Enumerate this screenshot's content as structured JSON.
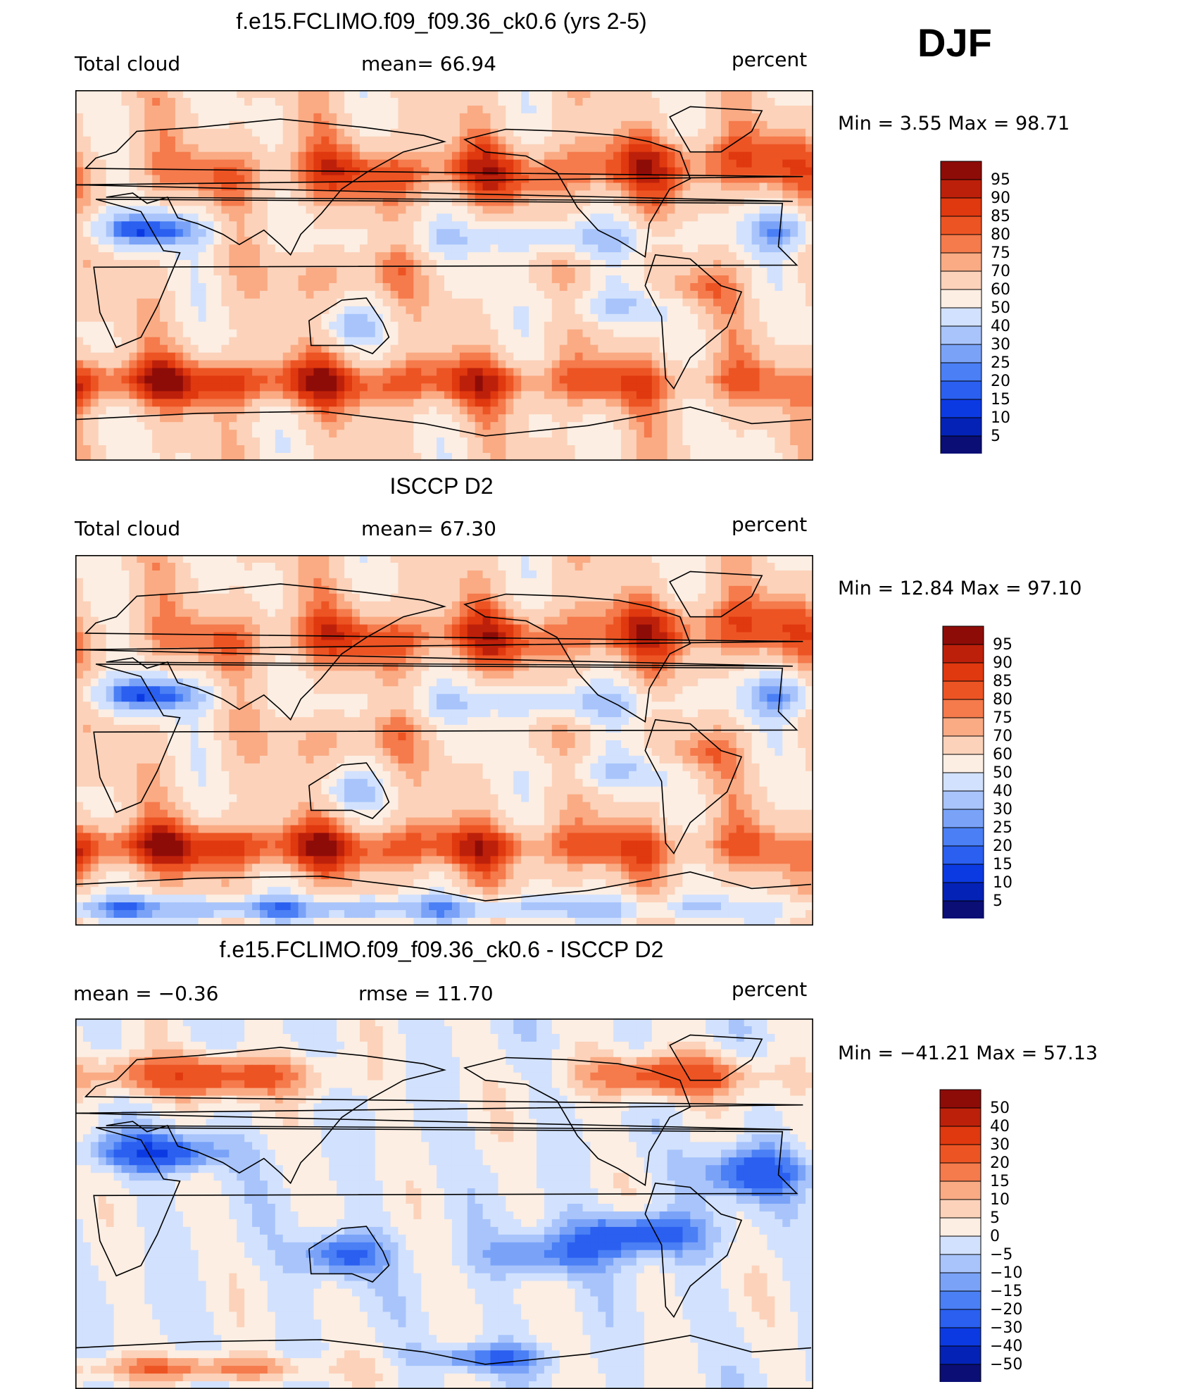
{
  "season": "DJF",
  "colors": {
    "scale13": [
      "#0a0e75",
      "#0422b6",
      "#0c3ae2",
      "#2a5ff0",
      "#4a7ff5",
      "#7aa3f8",
      "#a8c4fb",
      "#d2e1fd",
      "#fceee3",
      "#fcd2ba",
      "#faab84",
      "#f57a4c",
      "#ed5423",
      "#e0380f",
      "#bd200a",
      "#8e0c08"
    ],
    "diff16": [
      "#0a0e75",
      "#0422b6",
      "#0c3ae2",
      "#2a5ff0",
      "#4a7ff5",
      "#7aa3f8",
      "#a8c4fb",
      "#d2e1fd",
      "#fceee3",
      "#fcd2ba",
      "#faab84",
      "#f57a4c",
      "#ed5423",
      "#e0380f",
      "#bd200a",
      "#8e0c08"
    ]
  },
  "chart_data": [
    {
      "type": "heatmap",
      "title": "f.e15.FCLIMO.f09_f09.36_ck0.6 (yrs 2-5)",
      "left_label": "Total cloud",
      "center_label": "mean=   66.94",
      "units": "percent",
      "mean": 66.94,
      "min_max_text": "Min =    3.55  Max  =   98.71",
      "min": 3.55,
      "max": 98.71,
      "colorbar_levels": [
        "95",
        "90",
        "85",
        "80",
        "75",
        "70",
        "60",
        "50",
        "40",
        "30",
        "25",
        "20",
        "15",
        "10",
        "5"
      ],
      "style": "model"
    },
    {
      "type": "heatmap",
      "title": "ISCCP D2",
      "left_label": "Total cloud",
      "center_label": "mean=   67.30",
      "units": "percent",
      "mean": 67.3,
      "min_max_text": "Min =   12.84  Max  =   97.10",
      "min": 12.84,
      "max": 97.1,
      "colorbar_levels": [
        "95",
        "90",
        "85",
        "80",
        "75",
        "70",
        "60",
        "50",
        "40",
        "30",
        "25",
        "20",
        "15",
        "10",
        "5"
      ],
      "style": "obs"
    },
    {
      "type": "heatmap",
      "title": "f.e15.FCLIMO.f09_f09.36_ck0.6 - ISCCP D2",
      "left_label": "mean  =    −0.36",
      "center_label": "rmse  =    11.70",
      "units": "percent",
      "mean": -0.36,
      "rmse": 11.7,
      "min_max_text": "Min  = −41.21  Max  =   57.13",
      "min": -41.21,
      "max": 57.13,
      "colorbar_levels": [
        "50",
        "40",
        "30",
        "20",
        "15",
        "10",
        "5",
        "0",
        "−5",
        "−10",
        "−15",
        "−20",
        "−30",
        "−40",
        "−50"
      ],
      "style": "diff"
    }
  ]
}
